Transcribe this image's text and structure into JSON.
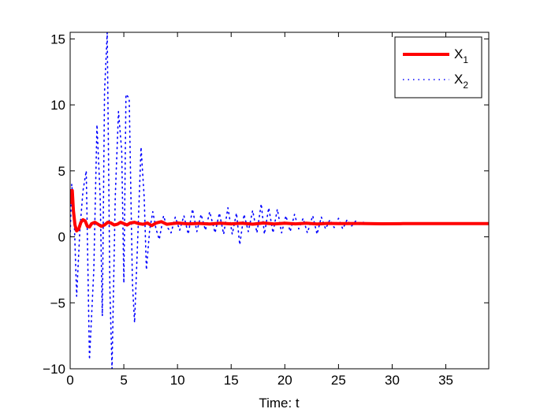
{
  "chart_data": {
    "type": "line",
    "title": "",
    "xlabel": "Time: t",
    "ylabel": "",
    "xlim": [
      0,
      39
    ],
    "ylim": [
      -10,
      15.5
    ],
    "xticks": [
      0,
      5,
      10,
      15,
      20,
      25,
      30,
      35
    ],
    "yticks": [
      -10,
      -5,
      0,
      5,
      10,
      15
    ],
    "xtick_labels": [
      "0",
      "5",
      "10",
      "15",
      "20",
      "25",
      "30",
      "35"
    ],
    "ytick_labels": [
      "−10",
      "−5",
      "0",
      "5",
      "10",
      "15"
    ],
    "grid": false,
    "legend_position": "top-right",
    "series": [
      {
        "name": "X",
        "subscript": "1",
        "color": "#ff0000",
        "style": "solid",
        "points": [
          [
            0,
            3.5
          ],
          [
            0.1,
            2.6
          ],
          [
            0.2,
            3.5
          ],
          [
            0.3,
            2.0
          ],
          [
            0.45,
            0.9
          ],
          [
            0.6,
            0.45
          ],
          [
            0.8,
            0.6
          ],
          [
            1.0,
            1.1
          ],
          [
            1.2,
            1.3
          ],
          [
            1.4,
            1.2
          ],
          [
            1.6,
            0.8
          ],
          [
            1.8,
            0.75
          ],
          [
            2.0,
            1.0
          ],
          [
            2.3,
            1.1
          ],
          [
            2.6,
            0.95
          ],
          [
            2.9,
            0.8
          ],
          [
            3.2,
            0.9
          ],
          [
            3.5,
            1.1
          ],
          [
            3.8,
            1.05
          ],
          [
            4.1,
            0.9
          ],
          [
            4.4,
            0.95
          ],
          [
            4.7,
            1.1
          ],
          [
            5.0,
            1.0
          ],
          [
            5.3,
            0.9
          ],
          [
            5.6,
            1.05
          ],
          [
            6.0,
            1.1
          ],
          [
            6.4,
            1.0
          ],
          [
            6.8,
            0.95
          ],
          [
            7.2,
            1.05
          ],
          [
            7.6,
            0.85
          ],
          [
            8.0,
            1.05
          ],
          [
            8.5,
            1.15
          ],
          [
            9.0,
            0.95
          ],
          [
            9.5,
            1.0
          ],
          [
            10.0,
            1.05
          ],
          [
            11.0,
            0.98
          ],
          [
            12.0,
            1.02
          ],
          [
            13.0,
            0.97
          ],
          [
            14.0,
            1.03
          ],
          [
            15.0,
            0.98
          ],
          [
            16.0,
            1.03
          ],
          [
            17.0,
            0.96
          ],
          [
            18.0,
            1.05
          ],
          [
            19.0,
            0.97
          ],
          [
            20.0,
            1.03
          ],
          [
            21.0,
            0.98
          ],
          [
            22.0,
            1.03
          ],
          [
            23.0,
            0.97
          ],
          [
            24.0,
            1.02
          ],
          [
            25.0,
            1.0
          ],
          [
            27.0,
            1.01
          ],
          [
            29.0,
            0.99
          ],
          [
            31.0,
            1.0
          ],
          [
            33.0,
            1.0
          ],
          [
            35.0,
            1.0
          ],
          [
            37.0,
            1.0
          ],
          [
            39.0,
            1.0
          ]
        ]
      },
      {
        "name": "X",
        "subscript": "2",
        "color": "#0000ff",
        "style": "dotted",
        "points": [
          [
            0,
            0
          ],
          [
            0.15,
            4.0
          ],
          [
            0.35,
            2.0
          ],
          [
            0.6,
            -4.5
          ],
          [
            0.9,
            0.5
          ],
          [
            1.2,
            3.5
          ],
          [
            1.5,
            5.0
          ],
          [
            1.8,
            -9.3
          ],
          [
            2.2,
            -2.5
          ],
          [
            2.5,
            8.5
          ],
          [
            2.8,
            3.0
          ],
          [
            3.0,
            -6.0
          ],
          [
            3.2,
            11.0
          ],
          [
            3.45,
            15.5
          ],
          [
            3.7,
            -4.0
          ],
          [
            3.9,
            -10.0
          ],
          [
            4.2,
            3.0
          ],
          [
            4.5,
            9.5
          ],
          [
            4.8,
            6.5
          ],
          [
            5.0,
            -3.5
          ],
          [
            5.2,
            10.8
          ],
          [
            5.5,
            10.5
          ],
          [
            5.8,
            -3.5
          ],
          [
            6.0,
            -6.5
          ],
          [
            6.3,
            0.0
          ],
          [
            6.6,
            6.8
          ],
          [
            6.9,
            3.0
          ],
          [
            7.1,
            -2.5
          ],
          [
            7.4,
            0.5
          ],
          [
            7.7,
            1.9
          ],
          [
            8.0,
            0.6
          ],
          [
            8.3,
            -0.2
          ],
          [
            8.7,
            1.6
          ],
          [
            9.0,
            0.8
          ],
          [
            9.4,
            0.3
          ],
          [
            9.8,
            1.5
          ],
          [
            10.2,
            0.5
          ],
          [
            10.6,
            1.6
          ],
          [
            11.0,
            0.2
          ],
          [
            11.4,
            2.1
          ],
          [
            11.8,
            0.4
          ],
          [
            12.2,
            1.7
          ],
          [
            12.6,
            0.5
          ],
          [
            13.0,
            1.9
          ],
          [
            13.5,
            0.3
          ],
          [
            13.9,
            1.8
          ],
          [
            14.3,
            0.2
          ],
          [
            14.7,
            2.2
          ],
          [
            15.1,
            0.2
          ],
          [
            15.5,
            1.8
          ],
          [
            15.8,
            -0.6
          ],
          [
            16.2,
            1.7
          ],
          [
            16.6,
            0.4
          ],
          [
            17.0,
            2.0
          ],
          [
            17.4,
            0.3
          ],
          [
            17.8,
            2.5
          ],
          [
            18.1,
            0.2
          ],
          [
            18.5,
            2.2
          ],
          [
            18.9,
            0.3
          ],
          [
            19.3,
            2.1
          ],
          [
            19.7,
            0.3
          ],
          [
            20.1,
            1.6
          ],
          [
            20.5,
            0.4
          ],
          [
            20.9,
            1.7
          ],
          [
            21.3,
            0.6
          ],
          [
            21.7,
            1.4
          ],
          [
            22.1,
            0.3
          ],
          [
            22.6,
            1.6
          ],
          [
            23.0,
            0.2
          ],
          [
            23.4,
            1.5
          ],
          [
            23.8,
            0.6
          ],
          [
            24.2,
            1.3
          ],
          [
            24.6,
            0.7
          ],
          [
            25.0,
            1.4
          ],
          [
            25.4,
            0.6
          ],
          [
            25.8,
            1.3
          ],
          [
            26.2,
            0.8
          ],
          [
            26.6,
            1.2
          ],
          [
            27.0,
            0.9
          ],
          [
            27.4,
            1.15
          ],
          [
            27.8,
            0.9
          ],
          [
            28.2,
            1.1
          ],
          [
            29.0,
            0.95
          ],
          [
            30.0,
            1.05
          ],
          [
            31.0,
            0.97
          ],
          [
            32.0,
            1.03
          ],
          [
            33.0,
            0.98
          ],
          [
            34.0,
            1.02
          ],
          [
            35.0,
            0.99
          ],
          [
            36.0,
            1.01
          ],
          [
            37.0,
            1.0
          ],
          [
            38.0,
            1.0
          ],
          [
            39.0,
            1.0
          ]
        ]
      }
    ]
  }
}
